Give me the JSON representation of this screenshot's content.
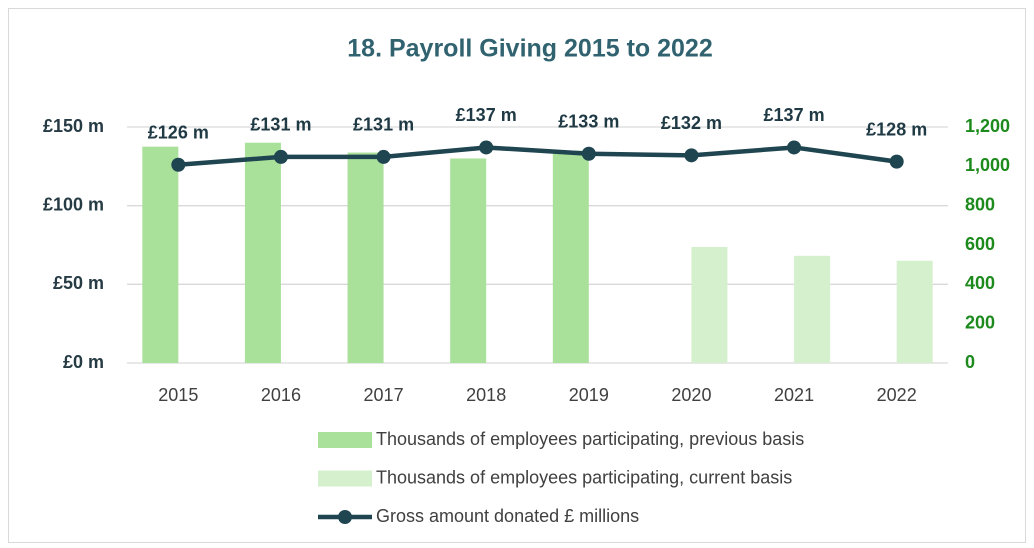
{
  "chart_data": {
    "type": "bar_line",
    "title": "18. Payroll Giving 2015 to 2022",
    "categories": [
      "2015",
      "2016",
      "2017",
      "2018",
      "2019",
      "2020",
      "2021",
      "2022"
    ],
    "series": [
      {
        "name": "Thousands of employees participating, previous basis",
        "type": "bar",
        "axis": "y2",
        "color": "#a9e09a",
        "values": [
          1100,
          1120,
          1070,
          1040,
          1080,
          null,
          null,
          null
        ]
      },
      {
        "name": "Thousands of employees participating, current basis",
        "type": "bar",
        "axis": "y2",
        "color": "#d5f0cc",
        "values": [
          null,
          null,
          null,
          null,
          null,
          590,
          545,
          520
        ]
      },
      {
        "name": "Gross amount donated £ millions",
        "type": "line",
        "axis": "y",
        "color": "#1f4550",
        "values": [
          126,
          131,
          131,
          137,
          133,
          132,
          137,
          128
        ],
        "value_labels": [
          "£126 m",
          "£131 m",
          "£131 m",
          "£137 m",
          "£133 m",
          "£132 m",
          "£137 m",
          "£128 m"
        ]
      }
    ],
    "ylim": [
      0,
      150
    ],
    "yticks": [
      {
        "value": 0,
        "label": "£0 m"
      },
      {
        "value": 50,
        "label": "£50 m"
      },
      {
        "value": 100,
        "label": "£100 m"
      },
      {
        "value": 150,
        "label": "£150 m"
      }
    ],
    "y2lim": [
      0,
      1200
    ],
    "y2ticks": [
      0,
      200,
      400,
      600,
      800,
      {
        "value": 1000,
        "label": "1,000"
      },
      {
        "value": 1200,
        "label": "1,200"
      }
    ],
    "grid": true,
    "legend": "bottom"
  }
}
